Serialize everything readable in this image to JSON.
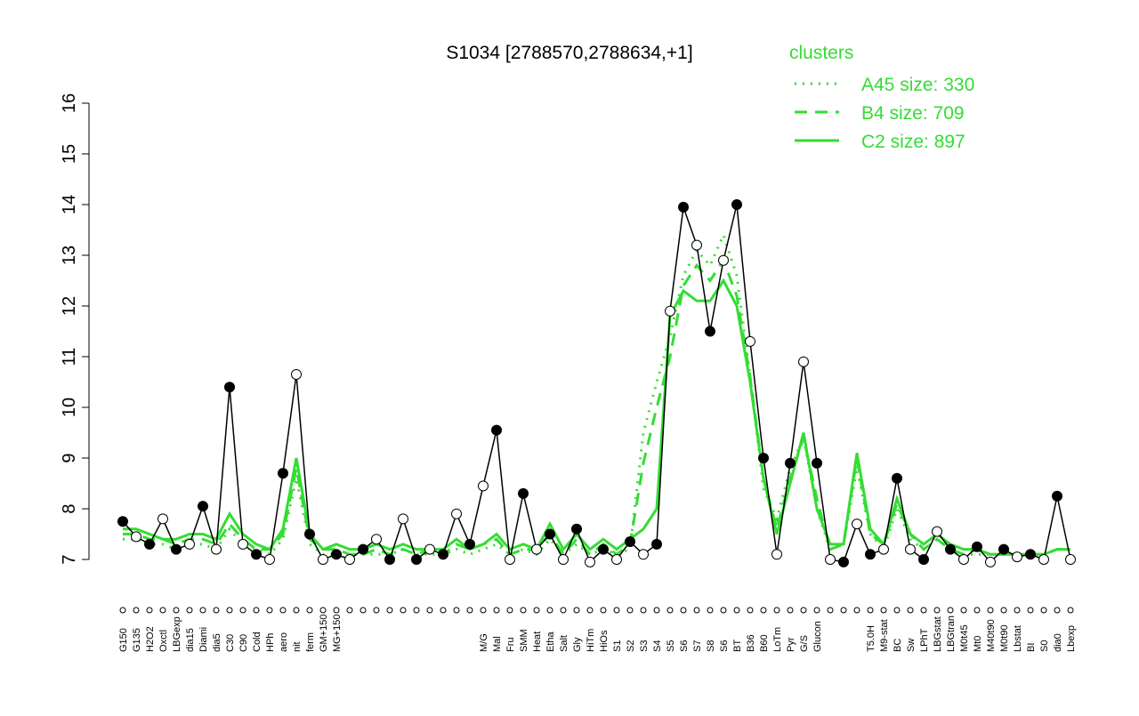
{
  "chart_data": {
    "type": "line",
    "title": "S1034 [2788570,2788634,+1]",
    "categories": [
      "G150",
      "G135",
      "H2O2",
      "Oxctl",
      "LBGexp",
      "dia15",
      "Diami",
      "dia5",
      "C30",
      "C90",
      "Cold",
      "HPh",
      "aero",
      "nit",
      "ferm",
      "GM+150",
      "MG+150",
      null,
      null,
      null,
      null,
      null,
      null,
      null,
      null,
      null,
      null,
      "M/G",
      "Mal",
      "Fru",
      "SMM",
      "Heat",
      "Etha",
      "Salt",
      "Gly",
      "HiTm",
      "HiOs",
      "S1",
      "S2",
      "S3",
      "S4",
      "S5",
      "S6",
      "S7",
      "S8",
      "S6",
      "BT",
      "B36",
      "B60",
      "LoTm",
      "Pyr",
      "G/S",
      "Glucon",
      null,
      null,
      null,
      "T5.0H",
      "M9-stat",
      "BC",
      "Sw",
      "LPhT",
      "LBGstat",
      "LBGtran",
      "M0t45",
      "Mt0",
      "M40t90",
      "M0t90",
      "Lbstat",
      "BI",
      "S0",
      "dia0",
      "Lbexp"
    ],
    "values": [
      7.75,
      7.45,
      7.3,
      7.8,
      7.2,
      7.3,
      8.05,
      7.2,
      10.4,
      7.3,
      7.1,
      7.0,
      8.7,
      10.65,
      7.5,
      7.0,
      7.1,
      7.0,
      7.2,
      7.4,
      7.0,
      7.8,
      7.0,
      7.2,
      7.1,
      7.9,
      7.3,
      8.45,
      9.55,
      7.0,
      8.3,
      7.2,
      7.5,
      7.0,
      7.6,
      6.95,
      7.2,
      7.0,
      7.35,
      7.1,
      7.3,
      11.9,
      13.95,
      13.2,
      11.5,
      12.9,
      14.0,
      11.3,
      9.0,
      7.1,
      8.9,
      10.9,
      8.9,
      7.0,
      6.95,
      7.7,
      7.1,
      7.2,
      8.6,
      7.2,
      7.0,
      7.55,
      7.2,
      7.0,
      7.25,
      6.95,
      7.2,
      7.05,
      7.1,
      7.0,
      8.25,
      7.0
    ],
    "color": "#000000",
    "legend_title": "clusters",
    "series": [
      {
        "name": "A45 size: 330",
        "color": "#33dd33",
        "dash": "dotted",
        "values": [
          7.4,
          7.4,
          7.3,
          7.3,
          7.2,
          7.3,
          7.3,
          7.2,
          7.6,
          7.3,
          7.2,
          7.1,
          7.4,
          8.6,
          7.3,
          7.1,
          7.1,
          7.1,
          7.1,
          7.1,
          7.1,
          7.2,
          7.1,
          7.1,
          7.1,
          7.2,
          7.1,
          7.2,
          7.3,
          7.1,
          7.2,
          7.1,
          7.4,
          7.1,
          7.3,
          7.1,
          7.2,
          7.1,
          7.2,
          9.5,
          10.5,
          11.4,
          12.6,
          13.1,
          12.8,
          13.4,
          12.6,
          10.6,
          8.4,
          7.8,
          8.8,
          9.4,
          8.0,
          7.2,
          7.3,
          8.8,
          7.5,
          7.2,
          8.0,
          7.4,
          7.2,
          7.4,
          7.2,
          7.1,
          7.1,
          7.1,
          7.1,
          7.1,
          7.1,
          7.1,
          7.2,
          7.2
        ]
      },
      {
        "name": "B4 size: 709",
        "color": "#33dd33",
        "dash": "dashed",
        "values": [
          7.5,
          7.5,
          7.4,
          7.4,
          7.3,
          7.4,
          7.4,
          7.3,
          7.7,
          7.4,
          7.2,
          7.2,
          7.5,
          8.8,
          7.4,
          7.2,
          7.2,
          7.1,
          7.1,
          7.2,
          7.1,
          7.2,
          7.1,
          7.2,
          7.1,
          7.3,
          7.2,
          7.3,
          7.4,
          7.1,
          7.2,
          7.2,
          7.5,
          7.1,
          7.4,
          7.1,
          7.3,
          7.1,
          7.3,
          8.9,
          10.0,
          11.0,
          12.4,
          12.8,
          12.5,
          12.9,
          12.2,
          10.6,
          8.6,
          7.6,
          8.6,
          9.4,
          8.2,
          7.2,
          7.3,
          9.0,
          7.5,
          7.3,
          8.1,
          7.5,
          7.2,
          7.4,
          7.2,
          7.1,
          7.2,
          7.1,
          7.1,
          7.1,
          7.1,
          7.1,
          7.2,
          7.2
        ]
      },
      {
        "name": "C2 size: 897",
        "color": "#33dd33",
        "dash": "solid",
        "values": [
          7.6,
          7.6,
          7.5,
          7.4,
          7.4,
          7.5,
          7.5,
          7.4,
          7.9,
          7.5,
          7.3,
          7.2,
          7.6,
          9.0,
          7.5,
          7.2,
          7.3,
          7.2,
          7.2,
          7.3,
          7.2,
          7.3,
          7.2,
          7.2,
          7.2,
          7.4,
          7.2,
          7.3,
          7.5,
          7.2,
          7.3,
          7.2,
          7.7,
          7.2,
          7.5,
          7.2,
          7.4,
          7.2,
          7.4,
          7.6,
          8.0,
          11.8,
          12.3,
          12.1,
          12.1,
          12.5,
          12.0,
          10.5,
          8.6,
          7.5,
          8.5,
          9.5,
          8.0,
          7.3,
          7.3,
          9.1,
          7.6,
          7.3,
          8.2,
          7.5,
          7.3,
          7.5,
          7.3,
          7.2,
          7.2,
          7.1,
          7.1,
          7.1,
          7.1,
          7.1,
          7.2,
          7.2
        ]
      }
    ],
    "ylim": [
      7,
      16
    ],
    "yticks": [
      7,
      8,
      9,
      10,
      11,
      12,
      13,
      14,
      15,
      16
    ]
  }
}
